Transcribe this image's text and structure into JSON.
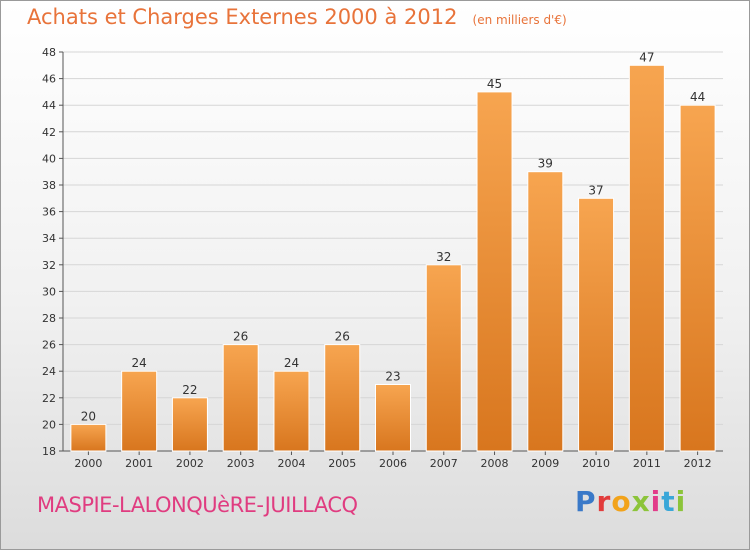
{
  "header": {
    "title": "Achats et Charges Externes 2000 à 2012",
    "unit": "(en milliers d'€)"
  },
  "footer": {
    "commune": "MASPIE-LALONQUèRE-JUILLACQ",
    "logo_text": "Proxiti"
  },
  "colors": {
    "bar_top": "#f7a550",
    "bar_bottom": "#d8761e",
    "title": "#e8733a",
    "commune": "#e03c80"
  },
  "chart_data": {
    "type": "bar",
    "title": "Achats et Charges Externes 2000 à 2012",
    "subtitle": "(en milliers d'€)",
    "categories": [
      "2000",
      "2001",
      "2002",
      "2003",
      "2004",
      "2005",
      "2006",
      "2007",
      "2008",
      "2009",
      "2010",
      "2011",
      "2012"
    ],
    "values": [
      20,
      24,
      22,
      26,
      24,
      26,
      23,
      32,
      45,
      39,
      37,
      47,
      44
    ],
    "ylim": [
      18,
      48
    ],
    "yticks": [
      18,
      20,
      22,
      24,
      26,
      28,
      30,
      32,
      34,
      36,
      38,
      40,
      42,
      44,
      46,
      48
    ],
    "grid": true,
    "legend": "none"
  }
}
